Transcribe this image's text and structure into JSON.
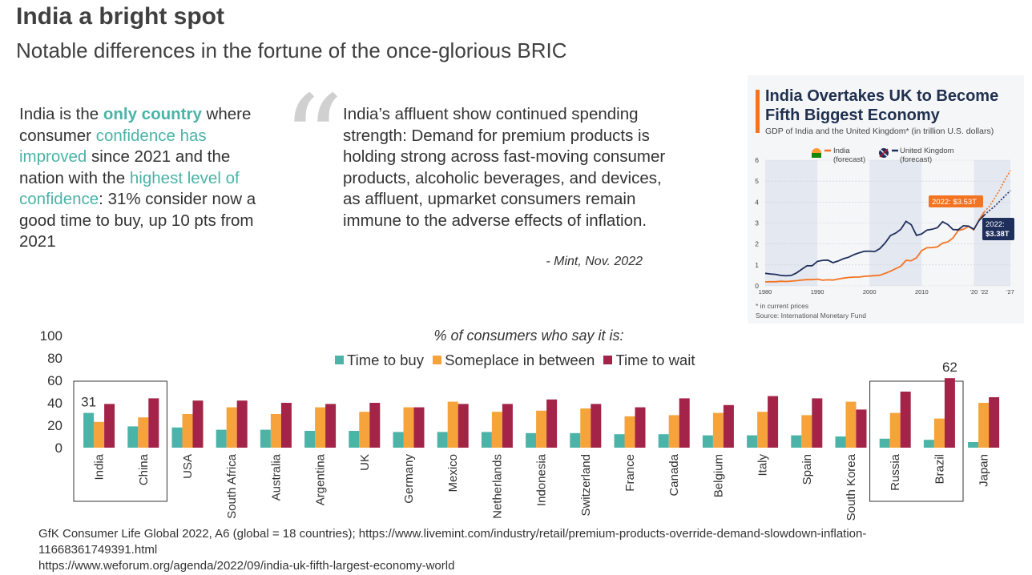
{
  "page": {
    "title": "India a bright spot",
    "subtitle": "Notable differences in the fortune of the once-glorious BRIC"
  },
  "left_text": {
    "p1": "India is the ",
    "p2": "only country",
    "p3": " where consumer ",
    "p4": "confidence has improved",
    "p5": " since 2021 and the nation with the ",
    "p6": "highest level of confidence",
    "p7": ": 31% consider now a good time to buy, up 10 pts from 2021"
  },
  "quote": {
    "mark": "“",
    "intro": "India’s affluent show continued spending strength: ",
    "body": "Demand for premium products is holding strong across fast-moving consumer products, alcoholic beverages, and devices, as affluent, upmarket consumers remain immune to the adverse effects of inflation.",
    "source": "- Mint, Nov. 2022"
  },
  "inset": {
    "title": "India Overtakes UK to Become Fifth Biggest Economy",
    "subtitle": "GDP of India and the United Kingdom* (in trillion U.S. dollars)",
    "legend_india": "India",
    "legend_uk": "United Kingdom",
    "legend_forecast": "(forecast)",
    "callout_india": "2022: $3.53T",
    "callout_uk_year": "2022:",
    "callout_uk_value": "$3.38T",
    "footnote": "* in current prices",
    "source": "Source: International Monetary Fund",
    "colors": {
      "india": "#f47321",
      "uk": "#1f2f5c"
    }
  },
  "chart_data": [
    {
      "type": "bar",
      "title": "% of consumers who say it is:",
      "categories": [
        "India",
        "China",
        "USA",
        "South Africa",
        "Australia",
        "Argentina",
        "UK",
        "Germany",
        "Mexico",
        "Netherlands",
        "Indonesia",
        "Switzerland",
        "France",
        "Canada",
        "Belgium",
        "Italy",
        "Spain",
        "South Korea",
        "Russia",
        "Brazil",
        "Japan"
      ],
      "series": [
        {
          "name": "Time to buy",
          "color": "#4bb3a7",
          "values": [
            31,
            19,
            18,
            16,
            16,
            15,
            15,
            14,
            14,
            14,
            13,
            13,
            12,
            12,
            11,
            11,
            11,
            10,
            8,
            7,
            5
          ]
        },
        {
          "name": "Someplace in between",
          "color": "#f6a33b",
          "values": [
            23,
            27,
            30,
            36,
            30,
            36,
            32,
            36,
            41,
            32,
            33,
            35,
            28,
            29,
            31,
            32,
            29,
            41,
            31,
            26,
            40
          ]
        },
        {
          "name": "Time to wait",
          "color": "#a32448",
          "values": [
            39,
            44,
            42,
            42,
            40,
            39,
            40,
            36,
            39,
            39,
            43,
            39,
            36,
            44,
            38,
            46,
            44,
            34,
            50,
            62,
            45
          ]
        }
      ],
      "ylim": [
        0,
        100
      ],
      "yticks": [
        0,
        20,
        40,
        60,
        80,
        100
      ],
      "data_labels": [
        {
          "category": "India",
          "series": "Time to buy",
          "text": "31"
        },
        {
          "category": "Brazil",
          "series": "Time to wait",
          "text": "62"
        }
      ],
      "highlight_groups": [
        [
          "India",
          "China"
        ],
        [
          "Russia",
          "Brazil"
        ]
      ]
    },
    {
      "type": "line",
      "title": "India Overtakes UK to Become Fifth Biggest Economy",
      "ylabel": "trillion U.S. dollars",
      "ylim": [
        0,
        6
      ],
      "yticks": [
        0,
        1,
        2,
        3,
        4,
        5,
        6
      ],
      "xlim": [
        1980,
        2027
      ],
      "xticks": [
        "1980",
        "1990",
        "2000",
        "2010",
        "'20",
        "'22",
        "'27"
      ],
      "xtick_values": [
        1980,
        1990,
        2000,
        2010,
        2020,
        2022,
        2027
      ],
      "series": [
        {
          "name": "India",
          "x": [
            1980,
            1981,
            1982,
            1983,
            1984,
            1985,
            1986,
            1987,
            1988,
            1989,
            1990,
            1991,
            1992,
            1993,
            1994,
            1995,
            1996,
            1997,
            1998,
            1999,
            2000,
            2001,
            2002,
            2003,
            2004,
            2005,
            2006,
            2007,
            2008,
            2009,
            2010,
            2011,
            2012,
            2013,
            2014,
            2015,
            2016,
            2017,
            2018,
            2019,
            2020,
            2021,
            2022
          ],
          "values": [
            0.19,
            0.2,
            0.2,
            0.22,
            0.21,
            0.23,
            0.25,
            0.28,
            0.3,
            0.3,
            0.32,
            0.27,
            0.29,
            0.28,
            0.33,
            0.37,
            0.4,
            0.42,
            0.42,
            0.46,
            0.47,
            0.49,
            0.51,
            0.6,
            0.7,
            0.82,
            0.94,
            1.22,
            1.2,
            1.34,
            1.68,
            1.82,
            1.83,
            1.86,
            2.04,
            2.1,
            2.29,
            2.65,
            2.7,
            2.84,
            2.67,
            3.15,
            3.53
          ]
        },
        {
          "name": "India (forecast)",
          "x": [
            2022,
            2023,
            2024,
            2025,
            2026,
            2027
          ],
          "values": [
            3.53,
            3.8,
            4.2,
            4.6,
            5.1,
            5.5
          ]
        },
        {
          "name": "United Kingdom",
          "x": [
            1980,
            1981,
            1982,
            1983,
            1984,
            1985,
            1986,
            1987,
            1988,
            1989,
            1990,
            1991,
            1992,
            1993,
            1994,
            1995,
            1996,
            1997,
            1998,
            1999,
            2000,
            2001,
            2002,
            2003,
            2004,
            2005,
            2006,
            2007,
            2008,
            2009,
            2010,
            2011,
            2012,
            2013,
            2014,
            2015,
            2016,
            2017,
            2018,
            2019,
            2020,
            2021,
            2022
          ],
          "values": [
            0.6,
            0.57,
            0.55,
            0.5,
            0.48,
            0.5,
            0.62,
            0.79,
            0.96,
            0.96,
            1.17,
            1.22,
            1.23,
            1.11,
            1.19,
            1.3,
            1.37,
            1.49,
            1.58,
            1.65,
            1.66,
            1.64,
            1.78,
            2.05,
            2.4,
            2.52,
            2.7,
            3.08,
            2.92,
            2.41,
            2.48,
            2.66,
            2.7,
            2.78,
            3.06,
            2.93,
            2.69,
            2.68,
            2.87,
            2.85,
            2.7,
            3.12,
            3.38
          ]
        },
        {
          "name": "United Kingdom (forecast)",
          "x": [
            2022,
            2023,
            2024,
            2025,
            2026,
            2027
          ],
          "values": [
            3.38,
            3.6,
            3.8,
            4.05,
            4.3,
            4.55
          ]
        }
      ],
      "annotations": [
        "2022: $3.53T",
        "2022: $3.38T"
      ]
    }
  ],
  "footnote": {
    "line1": "GfK Consumer Life Global 2022, A6 (global = 18 countries); https://www.livemint.com/industry/retail/premium-products-override-demand-slowdown-inflation-",
    "line2": "11668361749391.html",
    "line3": "https://www.weforum.org/agenda/2022/09/india-uk-fifth-largest-economy-world"
  }
}
